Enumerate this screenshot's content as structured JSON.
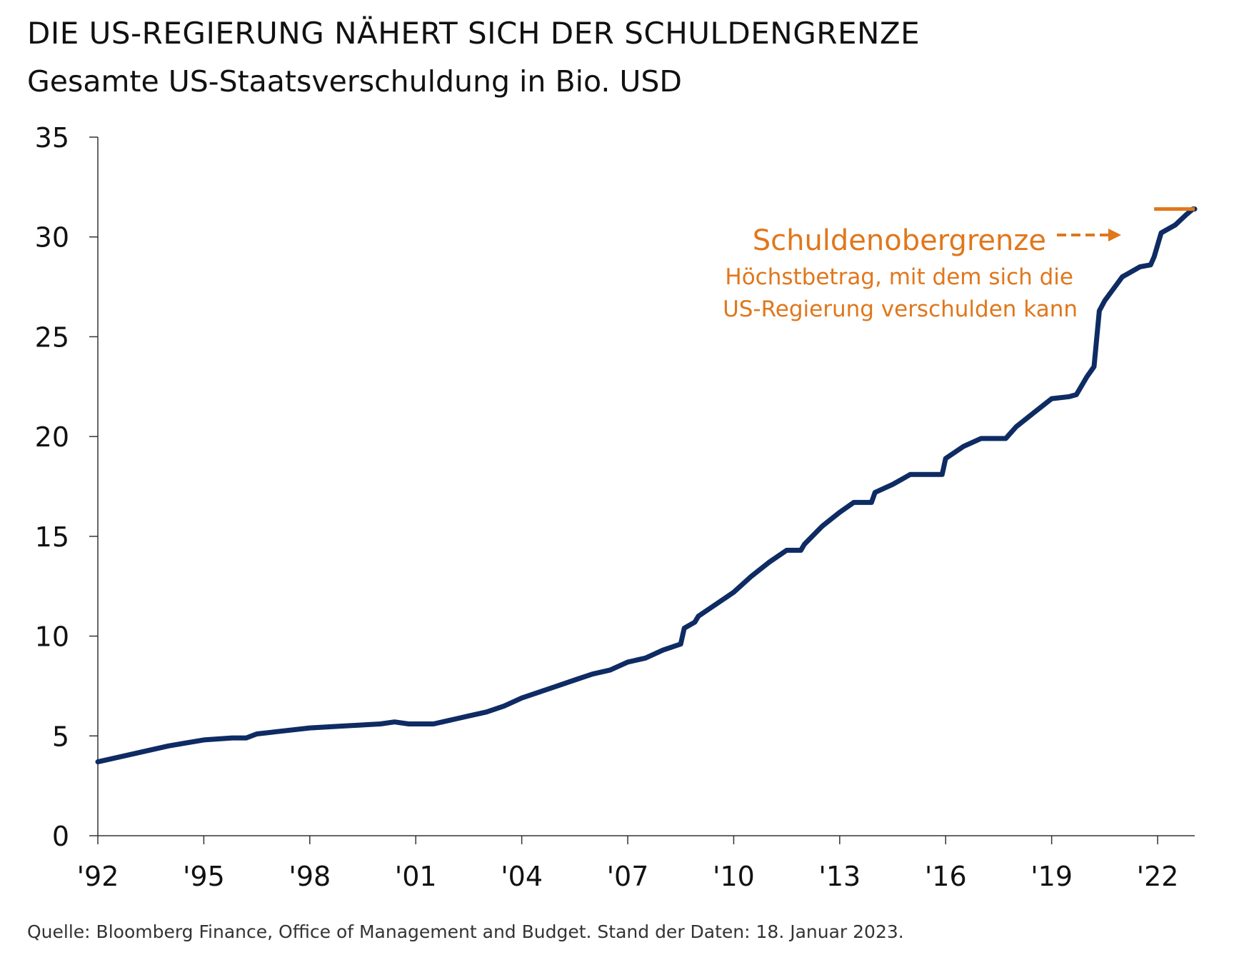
{
  "chart_data": {
    "type": "line",
    "title": "DIE US-REGIERUNG NÄHERT SICH DER SCHULDENGRENZE",
    "subtitle": "Gesamte US-Staatsverschuldung in Bio. USD",
    "xlabel": "",
    "ylabel": "",
    "xlim": [
      1992,
      2023.05
    ],
    "ylim": [
      0,
      35
    ],
    "x_ticks": [
      1992,
      1995,
      1998,
      2001,
      2004,
      2007,
      2010,
      2013,
      2016,
      2019,
      2022
    ],
    "x_tick_labels": [
      "'92",
      "'95",
      "'98",
      "'01",
      "'04",
      "'07",
      "'10",
      "'13",
      "'16",
      "'19",
      "'22"
    ],
    "y_ticks": [
      0,
      5,
      10,
      15,
      20,
      25,
      30,
      35
    ],
    "y_tick_labels": [
      "0",
      "5",
      "10",
      "15",
      "20",
      "25",
      "30",
      "35"
    ],
    "grid": false,
    "series": [
      {
        "color": "#0e2b63",
        "points": [
          [
            1992.0,
            3.7
          ],
          [
            1993.0,
            4.1
          ],
          [
            1994.0,
            4.5
          ],
          [
            1995.0,
            4.8
          ],
          [
            1995.8,
            4.9
          ],
          [
            1996.2,
            4.9
          ],
          [
            1996.5,
            5.1
          ],
          [
            1997.0,
            5.2
          ],
          [
            1998.0,
            5.4
          ],
          [
            1999.0,
            5.5
          ],
          [
            2000.0,
            5.6
          ],
          [
            2000.4,
            5.7
          ],
          [
            2000.8,
            5.6
          ],
          [
            2001.5,
            5.6
          ],
          [
            2002.0,
            5.8
          ],
          [
            2002.5,
            6.0
          ],
          [
            2003.0,
            6.2
          ],
          [
            2003.5,
            6.5
          ],
          [
            2004.0,
            6.9
          ],
          [
            2004.5,
            7.2
          ],
          [
            2005.0,
            7.5
          ],
          [
            2005.5,
            7.8
          ],
          [
            2006.0,
            8.1
          ],
          [
            2006.5,
            8.3
          ],
          [
            2007.0,
            8.7
          ],
          [
            2007.5,
            8.9
          ],
          [
            2008.0,
            9.3
          ],
          [
            2008.5,
            9.6
          ],
          [
            2008.6,
            10.4
          ],
          [
            2008.9,
            10.7
          ],
          [
            2009.0,
            11.0
          ],
          [
            2009.5,
            11.6
          ],
          [
            2010.0,
            12.2
          ],
          [
            2010.5,
            13.0
          ],
          [
            2011.0,
            13.7
          ],
          [
            2011.5,
            14.3
          ],
          [
            2011.9,
            14.3
          ],
          [
            2012.0,
            14.6
          ],
          [
            2012.5,
            15.5
          ],
          [
            2013.0,
            16.2
          ],
          [
            2013.4,
            16.7
          ],
          [
            2013.9,
            16.7
          ],
          [
            2014.0,
            17.2
          ],
          [
            2014.5,
            17.6
          ],
          [
            2015.0,
            18.1
          ],
          [
            2015.9,
            18.1
          ],
          [
            2016.0,
            18.9
          ],
          [
            2016.5,
            19.5
          ],
          [
            2017.0,
            19.9
          ],
          [
            2017.7,
            19.9
          ],
          [
            2018.0,
            20.5
          ],
          [
            2018.5,
            21.2
          ],
          [
            2019.0,
            21.9
          ],
          [
            2019.5,
            22.0
          ],
          [
            2019.7,
            22.1
          ],
          [
            2020.0,
            23.0
          ],
          [
            2020.2,
            23.5
          ],
          [
            2020.35,
            26.3
          ],
          [
            2020.5,
            26.8
          ],
          [
            2021.0,
            28.0
          ],
          [
            2021.5,
            28.5
          ],
          [
            2021.8,
            28.6
          ],
          [
            2021.9,
            29.0
          ],
          [
            2022.1,
            30.2
          ],
          [
            2022.5,
            30.6
          ],
          [
            2022.8,
            31.1
          ],
          [
            2023.0,
            31.4
          ],
          [
            2023.05,
            31.4
          ]
        ]
      }
    ],
    "reference_line": {
      "y": 31.4,
      "x_start": 2021.9,
      "x_end": 2023.05,
      "color": "#e0771b"
    },
    "annotation": {
      "label": "Schuldenobergrenze",
      "description_line1": "Höchstbetrag, mit dem sich die",
      "description_line2": "US-Regierung verschulden kann",
      "color": "#e0771b"
    },
    "source": "Quelle: Bloomberg Finance, Office of Management and Budget. Stand der Daten: 18. Januar 2023."
  }
}
